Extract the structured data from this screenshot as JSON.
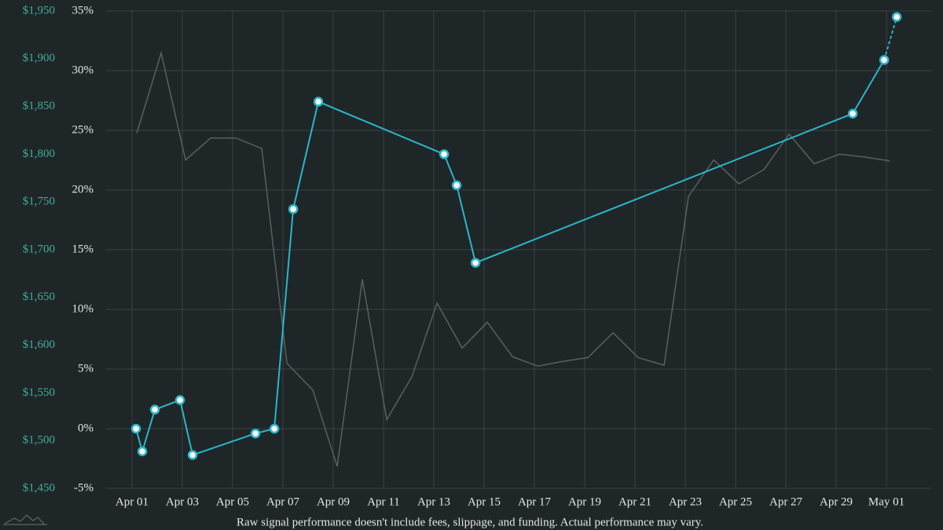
{
  "chart_data": {
    "type": "line",
    "xlim": [
      -1.03,
      31.78
    ],
    "xticks": [
      {
        "value": 0,
        "label": "Apr 01"
      },
      {
        "value": 2,
        "label": "Apr 03"
      },
      {
        "value": 4,
        "label": "Apr 05"
      },
      {
        "value": 6,
        "label": "Apr 07"
      },
      {
        "value": 8,
        "label": "Apr 09"
      },
      {
        "value": 10,
        "label": "Apr 11"
      },
      {
        "value": 12,
        "label": "Apr 13"
      },
      {
        "value": 14,
        "label": "Apr 15"
      },
      {
        "value": 16,
        "label": "Apr 17"
      },
      {
        "value": 18,
        "label": "Apr 19"
      },
      {
        "value": 20,
        "label": "Apr 21"
      },
      {
        "value": 22,
        "label": "Apr 23"
      },
      {
        "value": 24,
        "label": "Apr 25"
      },
      {
        "value": 26,
        "label": "Apr 27"
      },
      {
        "value": 28,
        "label": "Apr 29"
      },
      {
        "value": 30,
        "label": "May 01"
      }
    ],
    "ylim": [
      1450,
      1950
    ],
    "yticks": [
      {
        "value": 1450,
        "label": "$1,450"
      },
      {
        "value": 1500,
        "label": "$1,500"
      },
      {
        "value": 1550,
        "label": "$1,550"
      },
      {
        "value": 1600,
        "label": "$1,600"
      },
      {
        "value": 1650,
        "label": "$1,650"
      },
      {
        "value": 1700,
        "label": "$1,700"
      },
      {
        "value": 1750,
        "label": "$1,750"
      },
      {
        "value": 1800,
        "label": "$1,800"
      },
      {
        "value": 1850,
        "label": "$1,850"
      },
      {
        "value": 1900,
        "label": "$1,900"
      },
      {
        "value": 1950,
        "label": "$1,950"
      }
    ],
    "y2lim": [
      -5,
      35
    ],
    "y2ticks": [
      {
        "value": -5,
        "label": "-5%"
      },
      {
        "value": 0,
        "label": "0%"
      },
      {
        "value": 5,
        "label": "5%"
      },
      {
        "value": 10,
        "label": "10%"
      },
      {
        "value": 15,
        "label": "15%"
      },
      {
        "value": 20,
        "label": "20%"
      },
      {
        "value": 25,
        "label": "25%"
      },
      {
        "value": 30,
        "label": "30%"
      },
      {
        "value": 35,
        "label": "35%"
      }
    ],
    "grid": true,
    "ytick_color": "#3fae9f",
    "y2tick_color": "#e6e6e6",
    "series": [
      {
        "color": "#5a5f61",
        "axis": "y",
        "markers": false,
        "x": [
          0.19,
          1.16,
          2.13,
          3.13,
          4.13,
          5.16,
          6.16,
          7.19,
          8.16,
          9.16,
          10.13,
          11.13,
          12.13,
          13.13,
          14.13,
          15.13,
          16.13,
          17.13,
          18.13,
          19.13,
          20.13,
          21.16,
          22.13,
          23.13,
          24.13,
          25.13,
          26.13,
          27.13,
          28.13,
          29.13,
          30.13
        ],
        "values": [
          1822,
          1906,
          1794,
          1817,
          1817,
          1806,
          1581,
          1553,
          1473,
          1669,
          1522,
          1567,
          1644,
          1597,
          1624,
          1588,
          1578,
          1583,
          1587,
          1613,
          1587,
          1579,
          1756,
          1794,
          1769,
          1784,
          1821,
          1790,
          1800,
          1797,
          1793
        ]
      },
      {
        "color": "#2cb5c9",
        "axis": "y2",
        "markers": true,
        "dashed_last_segment": true,
        "x": [
          0.16,
          0.41,
          0.91,
          1.91,
          2.41,
          4.91,
          5.66,
          6.41,
          7.41,
          12.41,
          12.91,
          13.66,
          28.66,
          29.91,
          30.41
        ],
        "values": [
          0,
          -1.9,
          1.6,
          2.4,
          -2.2,
          -0.4,
          0,
          18.4,
          27.4,
          23.0,
          20.4,
          13.9,
          26.4,
          30.9,
          34.5
        ]
      }
    ],
    "footnote": "Raw signal performance doesn't include fees, slippage, and funding. Actual performance may vary."
  }
}
